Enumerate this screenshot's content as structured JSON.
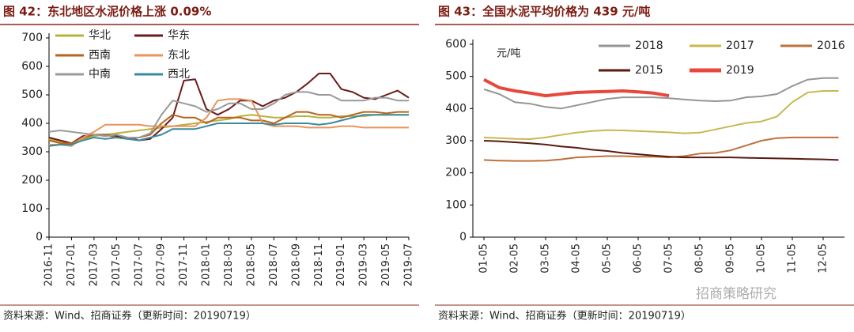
{
  "chart_data": [
    {
      "type": "line",
      "title": "图 42：东北地区水泥价格上涨 0.09%",
      "source": "资料来源：Wind、招商证券（更新时间：20190719）",
      "categories": [
        "2016-11",
        null,
        "2017-01",
        null,
        "2017-03",
        null,
        "2017-05",
        null,
        "2017-07",
        null,
        "2017-09",
        null,
        "2017-11",
        null,
        "2018-01",
        null,
        "2018-03",
        null,
        "2018-05",
        null,
        "2018-07",
        null,
        "2018-09",
        null,
        "2018-11",
        null,
        "2019-01",
        null,
        "2019-03",
        null,
        "2019-05",
        null,
        "2019-07"
      ],
      "ylim": [
        0,
        700
      ],
      "yticks": [
        0,
        100,
        200,
        300,
        400,
        500,
        600,
        700
      ],
      "series": [
        {
          "name": "华北",
          "color": "#b8b23c",
          "values": [
            345,
            335,
            330,
            345,
            355,
            360,
            365,
            370,
            375,
            380,
            385,
            390,
            395,
            400,
            405,
            410,
            415,
            425,
            430,
            425,
            420,
            420,
            425,
            425,
            420,
            420,
            425,
            425,
            425,
            430,
            430,
            430,
            430
          ]
        },
        {
          "name": "华东",
          "color": "#6b1a1a",
          "values": [
            350,
            340,
            330,
            355,
            360,
            360,
            355,
            350,
            340,
            345,
            380,
            420,
            550,
            555,
            450,
            430,
            450,
            480,
            480,
            460,
            480,
            490,
            510,
            540,
            575,
            575,
            520,
            510,
            490,
            485,
            500,
            515,
            490
          ]
        },
        {
          "name": "西南",
          "color": "#b5651d",
          "values": [
            340,
            330,
            330,
            350,
            360,
            360,
            350,
            345,
            350,
            360,
            400,
            430,
            420,
            420,
            400,
            420,
            420,
            420,
            410,
            410,
            400,
            420,
            440,
            440,
            430,
            430,
            420,
            430,
            440,
            440,
            435,
            440,
            440
          ]
        },
        {
          "name": "东北",
          "color": "#e8955a",
          "values": [
            325,
            325,
            320,
            350,
            370,
            395,
            395,
            395,
            395,
            390,
            390,
            390,
            390,
            390,
            420,
            480,
            485,
            485,
            480,
            400,
            390,
            390,
            390,
            385,
            385,
            385,
            390,
            390,
            385,
            385,
            385,
            385,
            385
          ]
        },
        {
          "name": "中南",
          "color": "#9a9a9a",
          "values": [
            370,
            375,
            370,
            365,
            360,
            355,
            360,
            350,
            350,
            365,
            430,
            480,
            470,
            460,
            440,
            450,
            470,
            470,
            450,
            450,
            470,
            500,
            510,
            510,
            500,
            500,
            480,
            480,
            480,
            490,
            490,
            480,
            480
          ]
        },
        {
          "name": "西北",
          "color": "#3a8aa0",
          "values": [
            320,
            325,
            325,
            340,
            350,
            345,
            350,
            345,
            340,
            350,
            360,
            380,
            380,
            380,
            390,
            400,
            400,
            400,
            400,
            400,
            395,
            400,
            400,
            400,
            395,
            400,
            410,
            420,
            430,
            430,
            430,
            430,
            430
          ]
        }
      ]
    },
    {
      "type": "line",
      "title": "图 43：全国水泥平均价格为 439 元/吨",
      "source": "资料来源：Wind、招商证券（更新时间：20190719）",
      "annotation": "元/吨",
      "watermark": "招商策略研究",
      "categories": [
        "01-05",
        null,
        "02-05",
        null,
        "03-05",
        null,
        "04-05",
        null,
        "05-05",
        null,
        "06-05",
        null,
        "07-05",
        null,
        "08-05",
        null,
        "09-05",
        null,
        "10-05",
        null,
        "11-05",
        null,
        "12-05",
        null
      ],
      "ylim": [
        0,
        600
      ],
      "yticks": [
        0,
        100,
        200,
        300,
        400,
        500,
        600
      ],
      "series": [
        {
          "name": "2018",
          "color": "#959595",
          "values": [
            460,
            445,
            420,
            415,
            405,
            400,
            410,
            420,
            430,
            435,
            435,
            435,
            432,
            428,
            425,
            423,
            425,
            435,
            438,
            445,
            470,
            490,
            495,
            495
          ]
        },
        {
          "name": "2017",
          "color": "#c8b850",
          "values": [
            310,
            308,
            306,
            305,
            310,
            318,
            325,
            330,
            333,
            332,
            330,
            328,
            326,
            323,
            325,
            335,
            345,
            355,
            360,
            375,
            420,
            450,
            455,
            455
          ]
        },
        {
          "name": "2016",
          "color": "#c0703a",
          "values": [
            240,
            238,
            237,
            237,
            238,
            242,
            248,
            250,
            252,
            252,
            250,
            250,
            248,
            252,
            260,
            262,
            270,
            285,
            300,
            308,
            310,
            310,
            310,
            310
          ]
        },
        {
          "name": "2015",
          "color": "#5a1a10",
          "values": [
            300,
            298,
            295,
            292,
            288,
            282,
            278,
            272,
            268,
            262,
            258,
            254,
            250,
            248,
            248,
            248,
            248,
            247,
            246,
            245,
            244,
            243,
            242,
            240
          ]
        },
        {
          "name": "2019",
          "color": "#e8473c",
          "width": 4,
          "values": [
            490,
            465,
            455,
            448,
            440,
            445,
            450,
            452,
            453,
            455,
            452,
            448,
            440,
            null,
            null,
            null,
            null,
            null,
            null,
            null,
            null,
            null,
            null,
            null
          ]
        }
      ]
    }
  ]
}
